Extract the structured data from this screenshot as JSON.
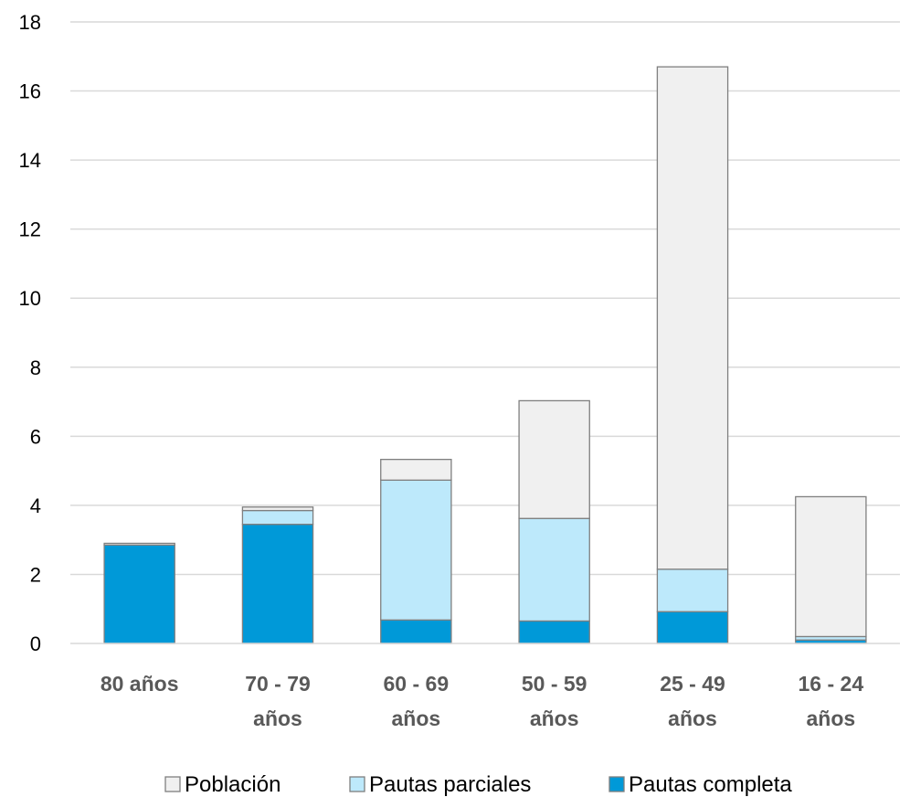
{
  "chart_data": {
    "type": "bar",
    "stacked": true,
    "categories": [
      [
        "80 años"
      ],
      [
        "70 - 79",
        "años"
      ],
      [
        "60 - 69",
        "años"
      ],
      [
        "50 - 59",
        "años"
      ],
      [
        "25 - 49",
        "años"
      ],
      [
        "16 - 24",
        "años"
      ]
    ],
    "series": [
      {
        "name": "Pautas completa",
        "color": "#0099D8",
        "values": [
          2.85,
          3.45,
          0.68,
          0.65,
          0.92,
          0.1
        ]
      },
      {
        "name": "Pautas parciales",
        "color": "#BDE9FB",
        "values": [
          0.0,
          0.4,
          4.05,
          2.97,
          1.23,
          0.1
        ]
      },
      {
        "name": "Población",
        "color": "#F0F0F0",
        "values": [
          0.05,
          0.1,
          0.6,
          3.41,
          14.55,
          4.05
        ]
      }
    ],
    "legend_order": [
      "Población",
      "Pautas parciales",
      "Pautas completa"
    ],
    "legend_position": "bottom",
    "ylim": [
      0,
      18
    ],
    "yticks": [
      "0",
      "2",
      "4",
      "6",
      "8",
      "10",
      "12",
      "14",
      "16",
      "18"
    ],
    "grid": true,
    "title": "",
    "xlabel": "",
    "ylabel": ""
  }
}
